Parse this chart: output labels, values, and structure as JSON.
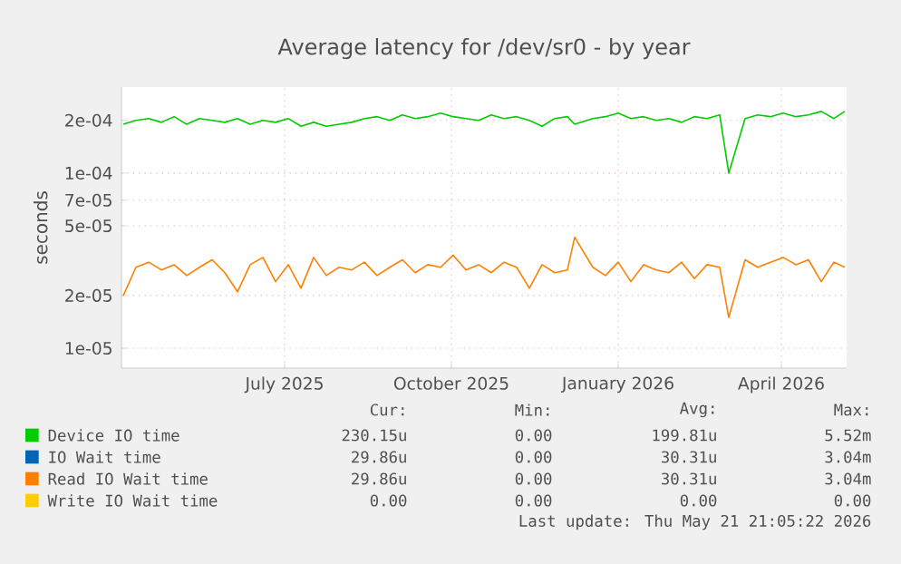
{
  "chart_data": {
    "type": "line",
    "title": "Average latency for /dev/sr0 - by year",
    "ylabel": "seconds",
    "log": "y",
    "grid": true,
    "legend": "bottom",
    "xlim": [
      "2025-04-02",
      "2026-05-07"
    ],
    "xticks": [
      {
        "value": "2025-07-01",
        "label": "July 2025"
      },
      {
        "value": "2025-10-01",
        "label": "October 2025"
      },
      {
        "value": "2026-01-01",
        "label": "January 2026"
      },
      {
        "value": "2026-04-01",
        "label": "April 2026"
      }
    ],
    "ylim": [
      7.7e-06,
      0.00031
    ],
    "yticks": [
      {
        "value": 1e-05,
        "label": "1e-05"
      },
      {
        "value": 2e-05,
        "label": "2e-05"
      },
      {
        "value": 5e-05,
        "label": "5e-05"
      },
      {
        "value": 7e-05,
        "label": "7e-05"
      },
      {
        "value": 0.0001,
        "label": "1e-04"
      },
      {
        "value": 0.0002,
        "label": "2e-04"
      }
    ],
    "x": [
      "2025-04-03",
      "2025-04-10",
      "2025-04-17",
      "2025-04-24",
      "2025-05-01",
      "2025-05-08",
      "2025-05-15",
      "2025-05-22",
      "2025-05-29",
      "2025-06-05",
      "2025-06-12",
      "2025-06-19",
      "2025-06-26",
      "2025-07-03",
      "2025-07-10",
      "2025-07-17",
      "2025-07-24",
      "2025-07-31",
      "2025-08-07",
      "2025-08-14",
      "2025-08-21",
      "2025-08-28",
      "2025-09-04",
      "2025-09-11",
      "2025-09-18",
      "2025-09-25",
      "2025-10-02",
      "2025-10-09",
      "2025-10-16",
      "2025-10-23",
      "2025-10-30",
      "2025-11-06",
      "2025-11-13",
      "2025-11-20",
      "2025-11-27",
      "2025-12-04",
      "2025-12-08",
      "2025-12-18",
      "2025-12-25",
      "2026-01-01",
      "2026-01-08",
      "2026-01-15",
      "2026-01-22",
      "2026-01-29",
      "2026-02-05",
      "2026-02-12",
      "2026-02-19",
      "2026-02-26",
      "2026-03-03",
      "2026-03-12",
      "2026-03-19",
      "2026-03-26",
      "2026-04-02",
      "2026-04-09",
      "2026-04-16",
      "2026-04-23",
      "2026-04-30",
      "2026-05-06"
    ],
    "series": [
      {
        "name": "Device IO time",
        "color": "#00cc00",
        "values": [
          0.00019,
          0.0002,
          0.000205,
          0.000195,
          0.00021,
          0.00019,
          0.000205,
          0.0002,
          0.000195,
          0.000205,
          0.00019,
          0.0002,
          0.000195,
          0.000205,
          0.000185,
          0.000195,
          0.000185,
          0.00019,
          0.000195,
          0.000205,
          0.00021,
          0.0002,
          0.000215,
          0.000205,
          0.00021,
          0.00022,
          0.00021,
          0.000205,
          0.0002,
          0.000215,
          0.000205,
          0.00021,
          0.0002,
          0.000185,
          0.000205,
          0.00021,
          0.00019,
          0.000205,
          0.00021,
          0.00022,
          0.000205,
          0.00021,
          0.0002,
          0.000205,
          0.000195,
          0.00021,
          0.000205,
          0.000215,
          0.0001,
          0.000205,
          0.000215,
          0.00021,
          0.00022,
          0.00021,
          0.000215,
          0.000225,
          0.000205,
          0.000225
        ]
      },
      {
        "name": "IO Wait time",
        "color": "#0066b3",
        "values": [
          null,
          null,
          null,
          null,
          null,
          null,
          null,
          null,
          null,
          null,
          null,
          null,
          null,
          null,
          null,
          null,
          null,
          null,
          null,
          null,
          null,
          null,
          null,
          null,
          null,
          null,
          null,
          null,
          null,
          null,
          null,
          null,
          null,
          null,
          null,
          null,
          null,
          null,
          null,
          null,
          null,
          null,
          null,
          null,
          null,
          null,
          null,
          null,
          null,
          null,
          null,
          null,
          null,
          null,
          null,
          null,
          null,
          null
        ]
      },
      {
        "name": "Read IO Wait time",
        "color": "#ff8000",
        "values": [
          2e-05,
          2.9e-05,
          3.1e-05,
          2.8e-05,
          3e-05,
          2.6e-05,
          2.9e-05,
          3.2e-05,
          2.7e-05,
          2.1e-05,
          3e-05,
          3.3e-05,
          2.4e-05,
          3e-05,
          2.2e-05,
          3.3e-05,
          2.6e-05,
          2.9e-05,
          2.8e-05,
          3.1e-05,
          2.6e-05,
          2.9e-05,
          3.2e-05,
          2.7e-05,
          3e-05,
          2.9e-05,
          3.4e-05,
          2.8e-05,
          3e-05,
          2.7e-05,
          3.1e-05,
          2.9e-05,
          2.2e-05,
          3e-05,
          2.7e-05,
          2.8e-05,
          4.3e-05,
          2.9e-05,
          2.6e-05,
          3.1e-05,
          2.4e-05,
          3e-05,
          2.8e-05,
          2.7e-05,
          3.1e-05,
          2.5e-05,
          3e-05,
          2.9e-05,
          1.5e-05,
          3.2e-05,
          2.9e-05,
          3.1e-05,
          3.3e-05,
          3e-05,
          3.2e-05,
          2.4e-05,
          3.1e-05,
          2.9e-05
        ]
      },
      {
        "name": "Write IO Wait time",
        "color": "#ffcc00",
        "values": [
          null,
          null,
          null,
          null,
          null,
          null,
          null,
          null,
          null,
          null,
          null,
          null,
          null,
          null,
          null,
          null,
          null,
          null,
          null,
          null,
          null,
          null,
          null,
          null,
          null,
          null,
          null,
          null,
          null,
          null,
          null,
          null,
          null,
          null,
          null,
          null,
          null,
          null,
          null,
          null,
          null,
          null,
          null,
          null,
          null,
          null,
          null,
          null,
          null,
          null,
          null,
          null,
          null,
          null,
          null,
          null,
          null,
          null
        ]
      }
    ],
    "annotations": [
      "Cur:",
      "Min:",
      "Avg:",
      "Max:",
      "230.15u",
      "0.00",
      "199.81u",
      "5.52m",
      "29.86u",
      "0.00",
      "30.31u",
      "3.04m",
      "29.86u",
      "0.00",
      "30.31u",
      "3.04m",
      "0.00",
      "0.00",
      "0.00",
      "0.00",
      "Last update: Thu May 21 21:05:22 2026"
    ]
  }
}
